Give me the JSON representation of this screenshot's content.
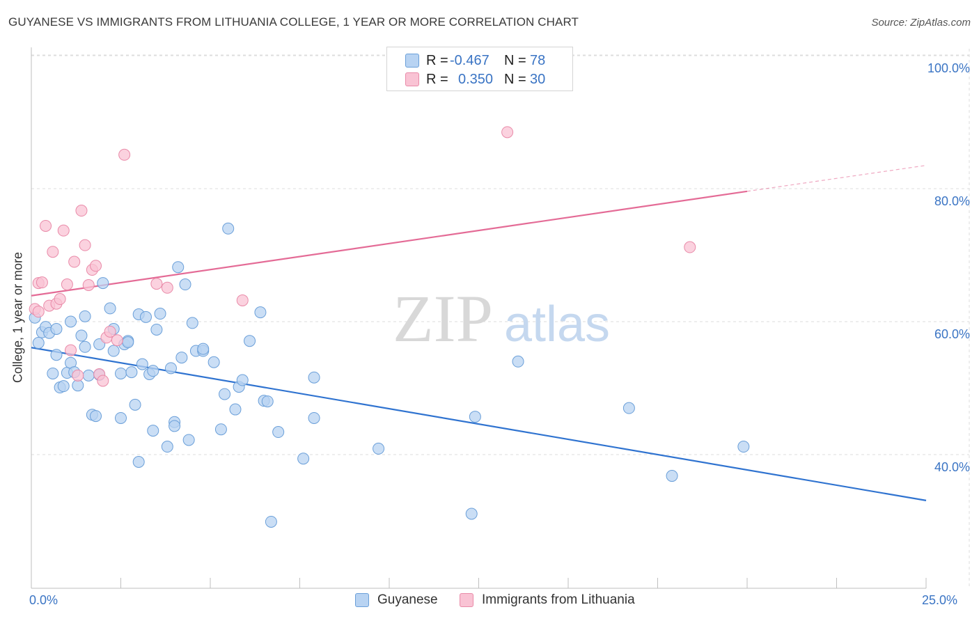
{
  "header": {
    "title": "GUYANESE VS IMMIGRANTS FROM LITHUANIA COLLEGE, 1 YEAR OR MORE CORRELATION CHART",
    "source": "Source: ZipAtlas.com"
  },
  "legend": {
    "rows": [
      {
        "r_label": "R =",
        "r_value": "-0.467",
        "n_label": "N =",
        "n_value": "78"
      },
      {
        "r_label": "R =",
        "r_value": "0.350",
        "n_label": "N =",
        "n_value": "30"
      }
    ]
  },
  "watermark": {
    "zip": "ZIP",
    "atlas": "atlas"
  },
  "colors": {
    "blue_fill": "#b8d3f2",
    "blue_stroke": "#6a9fd9",
    "blue_line": "#2f73d0",
    "pink_fill": "#f9c3d4",
    "pink_stroke": "#e98aa8",
    "pink_line": "#e46b96",
    "grid": "#dcdcdc",
    "axis_text": "#3a74c4"
  },
  "chart_data": {
    "type": "scatter",
    "title": "GUYANESE VS IMMIGRANTS FROM LITHUANIA COLLEGE, 1 YEAR OR MORE CORRELATION CHART",
    "xlabel": "",
    "ylabel": "College, 1 year or more",
    "xlim": [
      0,
      25
    ],
    "ylim": [
      22,
      102
    ],
    "x_tick_labels": [
      "0.0%",
      "25.0%"
    ],
    "y_ticks": [
      40,
      60,
      80,
      100
    ],
    "y_tick_labels": [
      "40.0%",
      "60.0%",
      "80.0%",
      "100.0%"
    ],
    "series": [
      {
        "name": "Guyanese",
        "r": -0.467,
        "n": 78,
        "trend": {
          "x0": 0,
          "y0": 56.1,
          "x1": 25,
          "y1": 33.1
        },
        "points": [
          [
            0.1,
            60.6
          ],
          [
            0.3,
            58.4
          ],
          [
            0.4,
            59.2
          ],
          [
            0.5,
            58.3
          ],
          [
            0.2,
            56.8
          ],
          [
            0.7,
            55.0
          ],
          [
            0.6,
            52.2
          ],
          [
            0.8,
            50.1
          ],
          [
            0.9,
            50.3
          ],
          [
            1.0,
            52.3
          ],
          [
            1.1,
            53.8
          ],
          [
            1.2,
            52.4
          ],
          [
            1.1,
            60.0
          ],
          [
            1.4,
            57.9
          ],
          [
            1.5,
            56.2
          ],
          [
            1.5,
            60.8
          ],
          [
            1.6,
            51.9
          ],
          [
            1.7,
            46.0
          ],
          [
            1.8,
            45.8
          ],
          [
            1.9,
            52.0
          ],
          [
            1.9,
            56.6
          ],
          [
            2.0,
            65.8
          ],
          [
            2.2,
            62.0
          ],
          [
            2.3,
            58.9
          ],
          [
            2.3,
            55.6
          ],
          [
            2.5,
            52.2
          ],
          [
            2.5,
            45.5
          ],
          [
            2.6,
            56.6
          ],
          [
            2.7,
            57.1
          ],
          [
            2.8,
            52.4
          ],
          [
            2.9,
            47.5
          ],
          [
            3.0,
            38.9
          ],
          [
            3.0,
            61.1
          ],
          [
            3.1,
            53.6
          ],
          [
            3.2,
            60.7
          ],
          [
            3.3,
            52.1
          ],
          [
            3.4,
            52.6
          ],
          [
            3.4,
            43.6
          ],
          [
            3.5,
            58.8
          ],
          [
            3.6,
            61.2
          ],
          [
            3.8,
            41.2
          ],
          [
            3.9,
            53.0
          ],
          [
            4.0,
            44.9
          ],
          [
            4.0,
            44.3
          ],
          [
            4.1,
            68.2
          ],
          [
            4.2,
            54.6
          ],
          [
            4.3,
            65.6
          ],
          [
            4.4,
            42.2
          ],
          [
            4.5,
            59.8
          ],
          [
            4.6,
            55.6
          ],
          [
            4.8,
            55.6
          ],
          [
            5.1,
            53.9
          ],
          [
            5.3,
            43.8
          ],
          [
            5.4,
            49.1
          ],
          [
            5.5,
            74.0
          ],
          [
            5.7,
            46.8
          ],
          [
            5.8,
            50.2
          ],
          [
            5.9,
            51.2
          ],
          [
            6.1,
            57.1
          ],
          [
            6.4,
            61.4
          ],
          [
            6.5,
            48.1
          ],
          [
            6.6,
            48.0
          ],
          [
            6.7,
            29.9
          ],
          [
            6.9,
            43.4
          ],
          [
            7.6,
            39.4
          ],
          [
            7.9,
            51.6
          ],
          [
            7.9,
            45.5
          ],
          [
            9.7,
            40.9
          ],
          [
            12.3,
            31.1
          ],
          [
            12.4,
            45.7
          ],
          [
            13.6,
            54.0
          ],
          [
            16.7,
            47.0
          ],
          [
            17.9,
            36.8
          ],
          [
            19.9,
            41.2
          ],
          [
            1.3,
            50.4
          ],
          [
            0.7,
            58.9
          ],
          [
            2.7,
            56.9
          ],
          [
            4.8,
            55.9
          ]
        ]
      },
      {
        "name": "Immigrants from Lithuania",
        "r": 0.35,
        "n": 30,
        "trend": {
          "x0": 0,
          "y0": 63.9,
          "x1": 20,
          "y1": 79.6
        },
        "trend_dashed_to": {
          "x": 25,
          "y": 83.5
        },
        "points": [
          [
            0.1,
            61.9
          ],
          [
            0.2,
            65.8
          ],
          [
            0.3,
            65.9
          ],
          [
            0.4,
            74.4
          ],
          [
            0.5,
            62.4
          ],
          [
            0.6,
            70.5
          ],
          [
            0.7,
            62.7
          ],
          [
            0.8,
            63.4
          ],
          [
            0.9,
            73.7
          ],
          [
            1.0,
            65.6
          ],
          [
            1.1,
            55.7
          ],
          [
            1.2,
            69.0
          ],
          [
            1.3,
            51.9
          ],
          [
            1.4,
            76.7
          ],
          [
            1.5,
            71.5
          ],
          [
            1.6,
            65.5
          ],
          [
            1.7,
            67.8
          ],
          [
            1.8,
            68.4
          ],
          [
            1.9,
            52.1
          ],
          [
            2.0,
            51.1
          ],
          [
            2.1,
            57.6
          ],
          [
            2.2,
            58.5
          ],
          [
            2.4,
            57.2
          ],
          [
            2.6,
            85.1
          ],
          [
            3.5,
            65.7
          ],
          [
            3.8,
            65.1
          ],
          [
            5.9,
            63.2
          ],
          [
            13.3,
            88.5
          ],
          [
            18.4,
            71.2
          ],
          [
            0.2,
            61.5
          ]
        ]
      }
    ]
  }
}
